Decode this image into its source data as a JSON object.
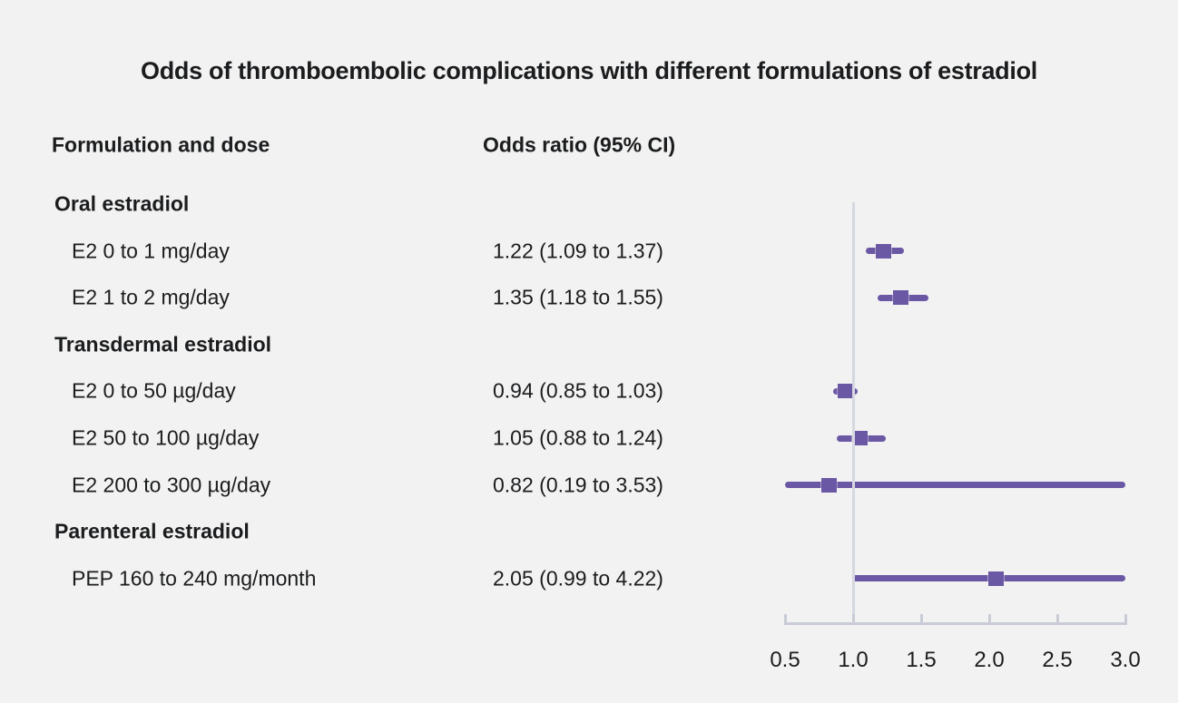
{
  "title": "Odds of thromboembolic complications with different formulations of estradiol",
  "table": {
    "label_header": "Formulation and dose",
    "value_header": "Odds ratio (95% CI)"
  },
  "chart_data": {
    "type": "forest",
    "xlim": [
      0.5,
      3.0
    ],
    "reference_value": 1.0,
    "x_ticks": [
      "0.5",
      "1.0",
      "1.5",
      "2.0",
      "2.5",
      "3.0"
    ],
    "grid": false,
    "rows": [
      {
        "kind": "group",
        "label": "Oral estradiol"
      },
      {
        "kind": "item",
        "label": "E2 0 to 1 mg/day",
        "display": "1.22 (1.09 to 1.37)",
        "value": 1.22,
        "ci_low": 1.09,
        "ci_high": 1.37
      },
      {
        "kind": "item",
        "label": "E2 1 to 2 mg/day",
        "display": "1.35 (1.18 to 1.55)",
        "value": 1.35,
        "ci_low": 1.18,
        "ci_high": 1.55
      },
      {
        "kind": "group",
        "label": "Transdermal estradiol"
      },
      {
        "kind": "item",
        "label": "E2 0 to 50 µg/day",
        "display": "0.94 (0.85 to 1.03)",
        "value": 0.94,
        "ci_low": 0.85,
        "ci_high": 1.03
      },
      {
        "kind": "item",
        "label": "E2 50 to 100 µg/day",
        "display": "1.05 (0.88 to 1.24)",
        "value": 1.05,
        "ci_low": 0.88,
        "ci_high": 1.24
      },
      {
        "kind": "item",
        "label": "E2 200 to 300 µg/day",
        "display": "0.82 (0.19 to 3.53)",
        "value": 0.82,
        "ci_low": 0.19,
        "ci_high": 3.53
      },
      {
        "kind": "group",
        "label": "Parenteral estradiol"
      },
      {
        "kind": "item",
        "label": "PEP 160 to 240 mg/month",
        "display": "2.05 (0.99 to 4.22)",
        "value": 2.05,
        "ci_low": 0.99,
        "ci_high": 4.22
      }
    ]
  },
  "colors": {
    "background": "#f2f2f2",
    "text": "#1b1c1e",
    "marker": "#6b58a4",
    "reference_line": "#d6d8e1",
    "axis": "#c9ccd6"
  }
}
